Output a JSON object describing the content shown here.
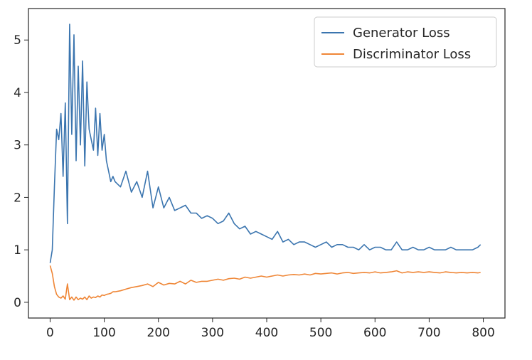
{
  "chart_data": {
    "type": "line",
    "title": "",
    "xlabel": "",
    "ylabel": "",
    "xlim": [
      -40,
      840
    ],
    "ylim": [
      -0.3,
      5.6
    ],
    "xticks": [
      0,
      100,
      200,
      300,
      400,
      500,
      600,
      700,
      800
    ],
    "yticks": [
      0,
      1,
      2,
      3,
      4,
      5
    ],
    "grid": false,
    "legend_position": "top-right",
    "series": [
      {
        "name": "Generator Loss",
        "color": "#3b75af",
        "x": [
          0,
          4,
          8,
          12,
          16,
          20,
          24,
          28,
          32,
          36,
          40,
          44,
          48,
          52,
          56,
          60,
          64,
          68,
          72,
          76,
          80,
          84,
          88,
          92,
          96,
          100,
          104,
          108,
          112,
          116,
          120,
          130,
          140,
          150,
          160,
          170,
          180,
          190,
          200,
          210,
          220,
          230,
          240,
          250,
          260,
          270,
          280,
          290,
          300,
          310,
          320,
          330,
          340,
          350,
          360,
          370,
          380,
          390,
          400,
          410,
          420,
          430,
          440,
          450,
          460,
          470,
          480,
          490,
          500,
          510,
          520,
          530,
          540,
          550,
          560,
          570,
          580,
          590,
          600,
          610,
          620,
          630,
          640,
          650,
          660,
          670,
          680,
          690,
          700,
          710,
          720,
          730,
          740,
          750,
          760,
          770,
          780,
          790,
          795
        ],
        "y": [
          0.75,
          1.0,
          2.2,
          3.3,
          3.1,
          3.6,
          2.4,
          3.8,
          1.5,
          5.3,
          3.2,
          5.1,
          2.7,
          4.5,
          3.0,
          4.6,
          2.6,
          4.2,
          3.3,
          3.1,
          2.9,
          3.7,
          2.8,
          3.6,
          2.9,
          3.2,
          2.7,
          2.5,
          2.3,
          2.4,
          2.3,
          2.2,
          2.5,
          2.1,
          2.3,
          2.0,
          2.5,
          1.8,
          2.2,
          1.8,
          2.0,
          1.75,
          1.8,
          1.85,
          1.7,
          1.7,
          1.6,
          1.65,
          1.6,
          1.5,
          1.55,
          1.7,
          1.5,
          1.4,
          1.45,
          1.3,
          1.35,
          1.3,
          1.25,
          1.2,
          1.35,
          1.15,
          1.2,
          1.1,
          1.15,
          1.15,
          1.1,
          1.05,
          1.1,
          1.15,
          1.05,
          1.1,
          1.1,
          1.05,
          1.05,
          1.0,
          1.1,
          1.0,
          1.05,
          1.05,
          1.0,
          1.0,
          1.15,
          1.0,
          1.0,
          1.05,
          1.0,
          1.0,
          1.05,
          1.0,
          1.0,
          1.0,
          1.05,
          1.0,
          1.0,
          1.0,
          1.0,
          1.05,
          1.1
        ]
      },
      {
        "name": "Discriminator Loss",
        "color": "#ef8636",
        "x": [
          0,
          4,
          8,
          12,
          16,
          20,
          24,
          28,
          32,
          36,
          40,
          44,
          48,
          52,
          56,
          60,
          64,
          68,
          72,
          76,
          80,
          84,
          88,
          92,
          96,
          100,
          104,
          108,
          112,
          116,
          120,
          130,
          140,
          150,
          160,
          170,
          180,
          190,
          200,
          210,
          220,
          230,
          240,
          250,
          260,
          270,
          280,
          290,
          300,
          310,
          320,
          330,
          340,
          350,
          360,
          370,
          380,
          390,
          400,
          410,
          420,
          430,
          440,
          450,
          460,
          470,
          480,
          490,
          500,
          510,
          520,
          530,
          540,
          550,
          560,
          570,
          580,
          590,
          600,
          610,
          620,
          630,
          640,
          650,
          660,
          670,
          680,
          690,
          700,
          710,
          720,
          730,
          740,
          750,
          760,
          770,
          780,
          790,
          795
        ],
        "y": [
          0.7,
          0.55,
          0.3,
          0.15,
          0.1,
          0.08,
          0.12,
          0.06,
          0.35,
          0.05,
          0.1,
          0.04,
          0.1,
          0.05,
          0.08,
          0.06,
          0.1,
          0.05,
          0.12,
          0.08,
          0.1,
          0.09,
          0.12,
          0.1,
          0.14,
          0.13,
          0.15,
          0.16,
          0.17,
          0.2,
          0.2,
          0.22,
          0.25,
          0.28,
          0.3,
          0.32,
          0.35,
          0.3,
          0.38,
          0.33,
          0.36,
          0.35,
          0.4,
          0.35,
          0.42,
          0.38,
          0.4,
          0.4,
          0.42,
          0.44,
          0.42,
          0.45,
          0.46,
          0.44,
          0.48,
          0.46,
          0.48,
          0.5,
          0.48,
          0.5,
          0.52,
          0.5,
          0.52,
          0.53,
          0.52,
          0.54,
          0.52,
          0.55,
          0.54,
          0.55,
          0.56,
          0.54,
          0.56,
          0.57,
          0.55,
          0.56,
          0.57,
          0.56,
          0.58,
          0.56,
          0.57,
          0.58,
          0.6,
          0.56,
          0.58,
          0.57,
          0.58,
          0.57,
          0.58,
          0.57,
          0.56,
          0.58,
          0.57,
          0.56,
          0.57,
          0.56,
          0.57,
          0.56,
          0.57
        ]
      }
    ]
  }
}
